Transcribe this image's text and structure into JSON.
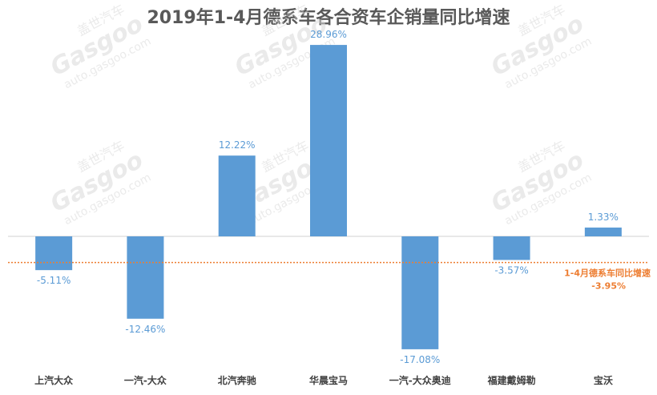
{
  "chart_data": {
    "type": "bar",
    "title": "2019年1-4月德系车各合资车企销量同比增速",
    "categories": [
      "上汽大众",
      "一汽-大众",
      "北汽奔驰",
      "华晨宝马",
      "一汽-大众奥迪",
      "福建戴姆勒",
      "宝沃"
    ],
    "values": [
      -5.11,
      -12.46,
      12.22,
      28.96,
      -17.08,
      -3.57,
      1.33
    ],
    "value_labels": [
      "-5.11%",
      "-12.46%",
      "12.22%",
      "28.96%",
      "-17.08%",
      "-3.57%",
      "1.33%"
    ],
    "unit": "%",
    "xlabel": "",
    "ylabel": "",
    "grid": false,
    "reference_line": {
      "name": "1-4月德系车同比增速",
      "value": -3.95,
      "label": "-3.95%",
      "style": "dotted",
      "color": "#ED7D31"
    },
    "bar_color": "#5B9BD5",
    "label_color": "#5B9BD5"
  },
  "watermark": {
    "brand": "盖世汽车",
    "logo_text": "Gasgoo",
    "url": "auto.gasgoo.com"
  }
}
